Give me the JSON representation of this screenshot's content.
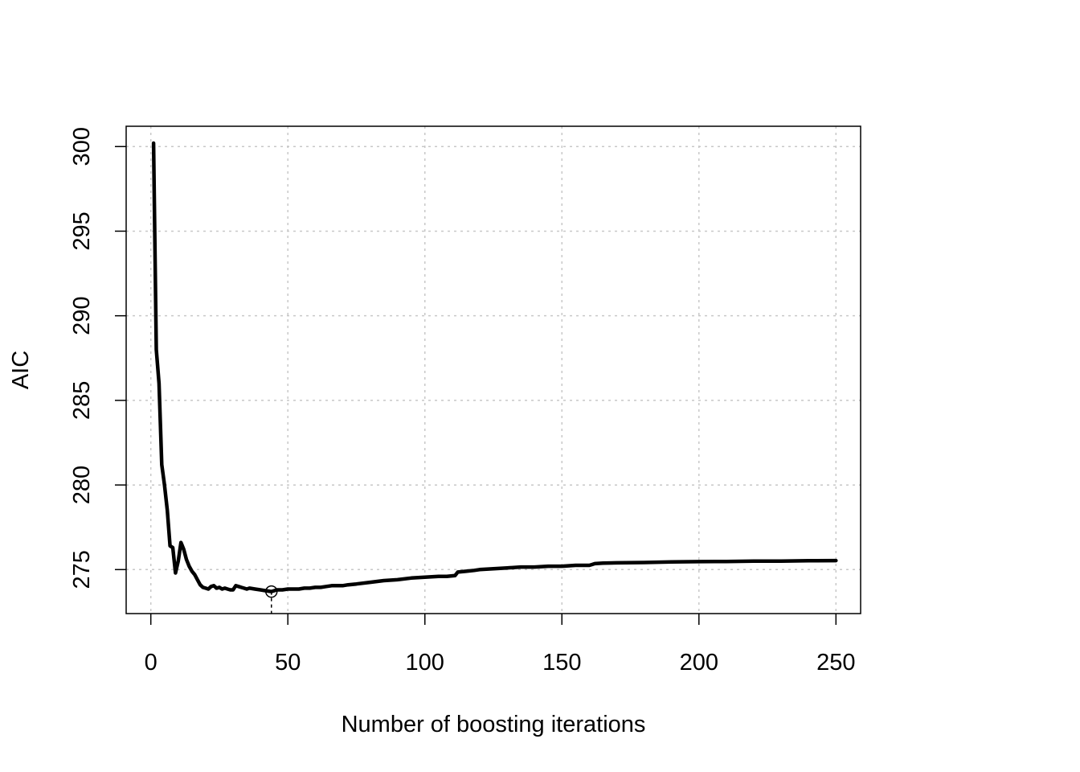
{
  "chart_data": {
    "type": "line",
    "title": "",
    "xlabel": "Number of boosting iterations",
    "ylabel": "AIC",
    "xlim": [
      -9,
      259
    ],
    "ylim": [
      272.4,
      301.2
    ],
    "xticks": [
      0,
      50,
      100,
      150,
      200,
      250
    ],
    "yticks": [
      275,
      280,
      285,
      290,
      295,
      300
    ],
    "xtick_labels": [
      "0",
      "50",
      "100",
      "150",
      "200",
      "250"
    ],
    "ytick_labels": [
      "275",
      "280",
      "285",
      "290",
      "295",
      "300"
    ],
    "grid": true,
    "minimum_marker": {
      "x": 44,
      "y": 273.7
    },
    "series": [
      {
        "color": "#000000",
        "x": [
          1,
          2,
          3,
          4,
          5,
          6,
          7,
          8,
          9,
          10,
          11,
          12,
          13,
          14,
          15,
          16,
          17,
          18,
          19,
          20,
          21,
          22,
          23,
          24,
          25,
          26,
          27,
          28,
          29,
          30,
          31,
          32,
          33,
          34,
          35,
          36,
          38,
          40,
          42,
          44,
          46,
          48,
          50,
          52,
          54,
          56,
          58,
          60,
          62,
          64,
          66,
          68,
          70,
          72,
          75,
          80,
          85,
          90,
          95,
          100,
          105,
          108,
          111,
          112,
          115,
          118,
          120,
          125,
          130,
          135,
          140,
          145,
          150,
          155,
          160,
          161,
          162,
          165,
          170,
          180,
          190,
          200,
          210,
          220,
          230,
          240,
          250
        ],
        "y": [
          300.2,
          288.0,
          286.0,
          281.2,
          280.0,
          278.5,
          276.4,
          276.3,
          274.8,
          275.5,
          276.6,
          276.2,
          275.6,
          275.2,
          274.9,
          274.7,
          274.4,
          274.1,
          273.95,
          273.9,
          273.85,
          274.0,
          274.05,
          273.9,
          273.95,
          273.85,
          273.9,
          273.85,
          273.8,
          273.8,
          274.05,
          274.0,
          273.95,
          273.9,
          273.85,
          273.9,
          273.85,
          273.8,
          273.75,
          273.7,
          273.8,
          273.8,
          273.85,
          273.85,
          273.85,
          273.9,
          273.9,
          273.95,
          273.95,
          274.0,
          274.05,
          274.05,
          274.05,
          274.1,
          274.15,
          274.25,
          274.35,
          274.4,
          274.5,
          274.55,
          274.6,
          274.6,
          274.65,
          274.85,
          274.9,
          274.95,
          275.0,
          275.05,
          275.1,
          275.15,
          275.15,
          275.2,
          275.2,
          275.25,
          275.25,
          275.3,
          275.35,
          275.38,
          275.4,
          275.42,
          275.45,
          275.47,
          275.48,
          275.5,
          275.5,
          275.52,
          275.53
        ]
      }
    ]
  }
}
